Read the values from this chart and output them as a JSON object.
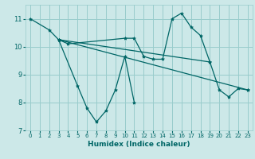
{
  "xlabel": "Humidex (Indice chaleur)",
  "bg_color": "#cce8e8",
  "grid_color": "#99cccc",
  "line_color": "#006666",
  "marker": "*",
  "xlim": [
    -0.5,
    23.5
  ],
  "ylim": [
    7,
    11.5
  ],
  "yticks": [
    7,
    8,
    9,
    10,
    11
  ],
  "xticks": [
    0,
    1,
    2,
    3,
    4,
    5,
    6,
    7,
    8,
    9,
    10,
    11,
    12,
    13,
    14,
    15,
    16,
    17,
    18,
    19,
    20,
    21,
    22,
    23
  ],
  "lines": [
    {
      "x": [
        0,
        2,
        3,
        5,
        6,
        7,
        8,
        9,
        10,
        11
      ],
      "y": [
        11.0,
        10.6,
        10.25,
        8.6,
        7.8,
        7.3,
        7.7,
        8.45,
        9.65,
        8.0
      ]
    },
    {
      "x": [
        3,
        4,
        10,
        11,
        12,
        13,
        14,
        15,
        16,
        17,
        18,
        19,
        20,
        21,
        22,
        23
      ],
      "y": [
        10.25,
        10.1,
        10.3,
        10.3,
        9.65,
        9.55,
        9.55,
        11.0,
        11.2,
        10.7,
        10.4,
        9.45,
        8.45,
        8.2,
        8.5,
        8.45
      ]
    },
    {
      "x": [
        3,
        23
      ],
      "y": [
        10.25,
        8.45
      ]
    },
    {
      "x": [
        3,
        19
      ],
      "y": [
        10.25,
        9.45
      ]
    }
  ]
}
